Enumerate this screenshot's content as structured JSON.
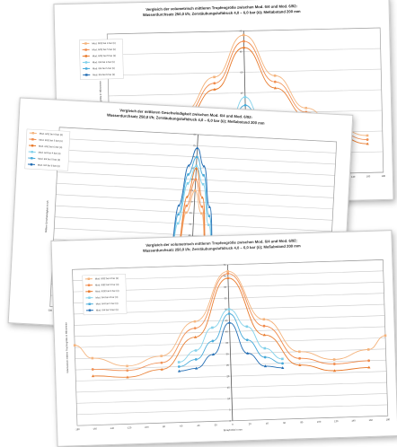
{
  "colors": {
    "orange_dark": "#e8792a",
    "orange_mid": "#f08a4b",
    "orange_light": "#f4b27a",
    "blue_light": "#7fd0ea",
    "blue_mid": "#45a9d9",
    "blue_dark": "#1f6bb2",
    "grid": "#c8c8c8"
  },
  "chart_data": [
    {
      "id": "back",
      "type": "line",
      "title": "Vergleich der volumetrisch mittleren Tropfengröße zwischen Mod. 6/4 und Mod. 6/92:",
      "subtitle": "Wasserdurchsatz 250,0 l/h; Zerstäubungsluftdruck 4,0 – 6,0 bar (ü); Meßabstand 200 mm",
      "xlabel": "",
      "ylabel": "Volumetrisch mittlere Tropfengröße in Mikrometer",
      "xlim": [
        -180,
        180
      ],
      "ylim": [
        0,
        70
      ],
      "xticks": [
        -160,
        -140,
        -120,
        -100,
        -80,
        -60,
        -40,
        -20,
        0,
        20,
        40,
        60,
        80,
        100,
        120,
        140,
        160,
        180
      ],
      "yticks": [
        0,
        10,
        20,
        30,
        40,
        50,
        60,
        70
      ],
      "grid": true,
      "legend_position": "top-left",
      "series": [
        {
          "name": "Mod. 6/92 bei 4 bar (ü)",
          "color": "#f4b27a",
          "x": [
            -160,
            -120,
            -80,
            -40,
            0,
            40,
            80,
            120,
            160
          ],
          "y": [
            18,
            22,
            32,
            48,
            68,
            48,
            32,
            22,
            18
          ]
        },
        {
          "name": "Mod. 6/92 bei 5 bar (ü)",
          "color": "#f08a4b",
          "x": [
            -160,
            -120,
            -80,
            -40,
            0,
            40,
            80,
            120,
            160
          ],
          "y": [
            16,
            20,
            30,
            45,
            65,
            45,
            30,
            20,
            16
          ]
        },
        {
          "name": "Mod. 6/92 bei 6 bar (ü)",
          "color": "#e8792a",
          "x": [
            -160,
            -120,
            -80,
            -40,
            0,
            40,
            80,
            120,
            160
          ],
          "y": [
            14,
            18,
            28,
            42,
            62,
            42,
            28,
            18,
            14
          ]
        },
        {
          "name": "Mod. 6/4 bei 4 bar (ü)",
          "color": "#7fd0ea",
          "x": [
            -60,
            -40,
            -20,
            0,
            20,
            40,
            60
          ],
          "y": [
            18,
            22,
            28,
            38,
            28,
            22,
            18
          ]
        },
        {
          "name": "Mod. 6/4 bei 5 bar (ü)",
          "color": "#45a9d9",
          "x": [
            -60,
            -40,
            -20,
            0,
            20,
            40,
            60
          ],
          "y": [
            16,
            20,
            26,
            34,
            26,
            20,
            16
          ]
        },
        {
          "name": "Mod. 6/4 bei 6 bar (ü)",
          "color": "#1f6bb2",
          "x": [
            -60,
            -40,
            -20,
            0,
            20,
            40,
            60
          ],
          "y": [
            14,
            18,
            22,
            30,
            22,
            18,
            14
          ]
        }
      ]
    },
    {
      "id": "middle",
      "type": "line",
      "title": "Vergleich der mittleren Geschwindigkeit zwischen Mod. 6/4 und Mod. 6/92:",
      "subtitle": "Wasserdurchsatz 250,0 l/h; Zerstäubungsluftdruck 4,0 – 6,0 bar (ü); Meßabstand 200 mm",
      "xlabel": "",
      "ylabel": "Mittlere Geschwindigkeit in m/s",
      "xlim": [
        -180,
        180
      ],
      "ylim": [
        0,
        80
      ],
      "xticks": [
        -180,
        -160,
        -140,
        -120,
        -100,
        -80,
        -60,
        -40,
        -20,
        0,
        20,
        40,
        60,
        80,
        100,
        120,
        140,
        160,
        180
      ],
      "yticks": [
        0,
        5,
        10,
        15,
        20,
        25,
        30,
        35,
        40,
        45,
        50,
        55,
        60,
        65,
        70,
        75,
        80
      ],
      "grid": true,
      "legend_position": "top-left",
      "series": [
        {
          "name": "Mod. 6/92 bei 4 bar (ü)",
          "color": "#f4b27a",
          "x": [
            -30,
            -20,
            -10,
            0,
            10,
            20,
            30
          ],
          "y": [
            2,
            20,
            45,
            55,
            45,
            20,
            2
          ]
        },
        {
          "name": "Mod. 6/92 bei 5 bar (ü)",
          "color": "#f08a4b",
          "x": [
            -30,
            -20,
            -10,
            0,
            10,
            20,
            30
          ],
          "y": [
            2,
            22,
            48,
            60,
            48,
            22,
            2
          ]
        },
        {
          "name": "Mod. 6/92 bei 6 bar (ü)",
          "color": "#e8792a",
          "x": [
            -30,
            -20,
            -10,
            0,
            10,
            20,
            30
          ],
          "y": [
            2,
            25,
            52,
            65,
            52,
            25,
            2
          ]
        },
        {
          "name": "Mod. 6/4 bei 4 bar (ü)",
          "color": "#7fd0ea",
          "x": [
            -40,
            -30,
            -20,
            -10,
            0,
            10,
            20,
            30,
            40
          ],
          "y": [
            2,
            15,
            40,
            58,
            66,
            58,
            40,
            15,
            2
          ]
        },
        {
          "name": "Mod. 6/4 bei 5 bar (ü)",
          "color": "#45a9d9",
          "x": [
            -40,
            -30,
            -20,
            -10,
            0,
            10,
            20,
            30,
            40
          ],
          "y": [
            2,
            18,
            44,
            62,
            70,
            62,
            44,
            18,
            2
          ]
        },
        {
          "name": "Mod. 6/4 bei 6 bar (ü)",
          "color": "#1f6bb2",
          "x": [
            -40,
            -30,
            -20,
            -10,
            0,
            10,
            20,
            30,
            40
          ],
          "y": [
            2,
            20,
            48,
            66,
            74,
            66,
            48,
            20,
            2
          ]
        }
      ]
    },
    {
      "id": "front",
      "type": "line",
      "title": "Vergleich der volumetrisch mittleren Tropfengröße zwischen Mod. 6/4 und Mod. 6/92:",
      "subtitle": "Wasserdurchsatz 250,0 l/h; Zerstäubungsluftdruck 4,0 – 6,0 bar (ü); Meßabstand 200 mm",
      "xlabel": "Spraybreite in mm",
      "ylabel": "Volumetrisch mittlere Tropfengröße in Mikrometer",
      "xlim": [
        -180,
        180
      ],
      "ylim": [
        0,
        70
      ],
      "xticks": [
        -180,
        -160,
        -140,
        -120,
        -100,
        -80,
        -60,
        -40,
        -20,
        0,
        20,
        40,
        60,
        80,
        100,
        120,
        140,
        160,
        180
      ],
      "yticks": [
        0,
        5,
        10,
        15,
        20,
        25,
        30,
        35,
        40,
        45,
        50,
        55,
        60,
        65,
        70
      ],
      "grid": true,
      "legend_position": "top-left",
      "series": [
        {
          "name": "Mod. 6/92 bei 4 bar (ü)",
          "color": "#f4b27a",
          "x": [
            -180,
            -160,
            -120,
            -80,
            -40,
            0,
            40,
            80,
            120,
            160,
            180
          ],
          "y": [
            36,
            30,
            26,
            30,
            45,
            67,
            45,
            30,
            26,
            30,
            36
          ]
        },
        {
          "name": "Mod. 6/92 bei 5 bar (ü)",
          "color": "#f08a4b",
          "x": [
            -160,
            -120,
            -80,
            -40,
            0,
            40,
            80,
            120,
            160
          ],
          "y": [
            25,
            24,
            27,
            42,
            66,
            42,
            27,
            24,
            25
          ]
        },
        {
          "name": "Mod. 6/92 bei 6 bar (ü)",
          "color": "#e8792a",
          "x": [
            -160,
            -120,
            -80,
            -40,
            0,
            40,
            80,
            120,
            160
          ],
          "y": [
            22,
            21,
            24,
            38,
            64,
            38,
            24,
            21,
            22
          ]
        },
        {
          "name": "Mod. 6/4 bei 4 bar (ü)",
          "color": "#7fd0ea",
          "x": [
            -60,
            -40,
            -20,
            0,
            20,
            40,
            60
          ],
          "y": [
            27,
            32,
            42,
            50,
            42,
            32,
            27
          ]
        },
        {
          "name": "Mod. 6/4 bei 5 bar (ü)",
          "color": "#45a9d9",
          "x": [
            -60,
            -40,
            -20,
            0,
            20,
            40,
            60
          ],
          "y": [
            25,
            28,
            36,
            48,
            36,
            28,
            25
          ]
        },
        {
          "name": "Mod. 6/4 bei 6 bar (ü)",
          "color": "#1f6bb2",
          "x": [
            -60,
            -40,
            -20,
            0,
            20,
            40,
            60
          ],
          "y": [
            23,
            24,
            30,
            44,
            30,
            24,
            23
          ]
        }
      ]
    }
  ]
}
